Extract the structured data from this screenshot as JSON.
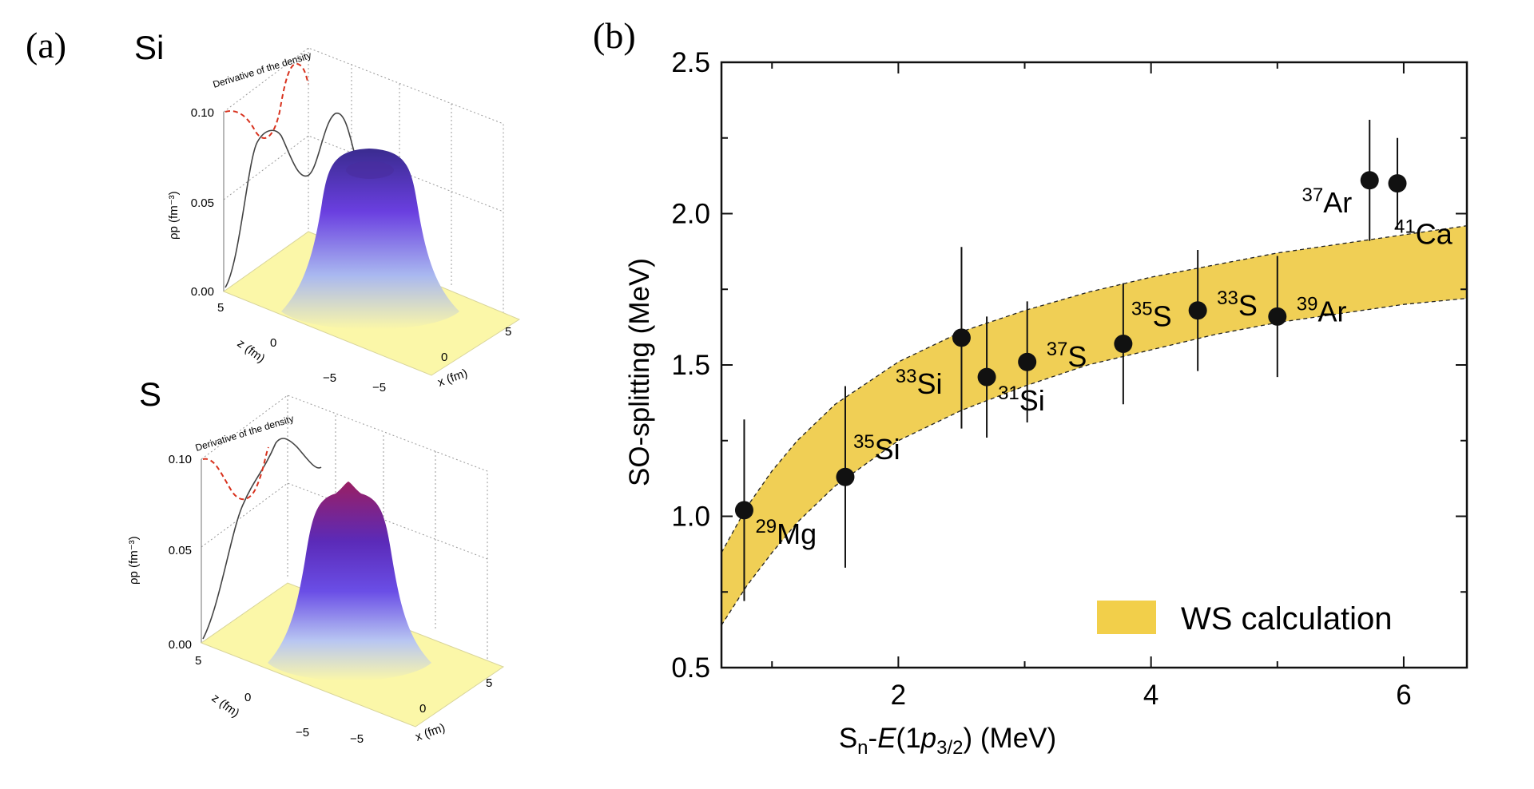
{
  "panel_a": {
    "label": "(a)",
    "plots": [
      {
        "element": "Si",
        "derivative_label": "Derivative of the density",
        "z_axis_label": "ρp (fm⁻³)",
        "z_ticks": [
          "0.10",
          "0.05",
          "0.00"
        ],
        "y_axis_label": "z (fm)",
        "y_ticks": [
          "5",
          "0",
          "−5"
        ],
        "x_axis_label": "x (fm)",
        "x_ticks": [
          "−5",
          "0",
          "5"
        ],
        "surface_top_color": "#3a2b8f",
        "surface_base_color": "#fbf7a8"
      },
      {
        "element": "S",
        "derivative_label": "Derivative of the density",
        "z_axis_label": "ρp (fm⁻³)",
        "z_ticks": [
          "0.10",
          "0.05",
          "0.00"
        ],
        "y_axis_label": "z (fm)",
        "y_ticks": [
          "5",
          "0",
          "−5"
        ],
        "x_axis_label": "x (fm)",
        "x_ticks": [
          "−5",
          "0",
          "5"
        ],
        "surface_top_color": "#9a1f63",
        "surface_base_color": "#fbf7a8"
      }
    ]
  },
  "panel_b": {
    "label": "(b)"
  },
  "chart_data": {
    "type": "scatter",
    "xlabel_parts": [
      "S",
      "n",
      "-",
      "E",
      "(1",
      "p",
      "3/2",
      ") (MeV)"
    ],
    "ylabel": "SO-splitting (MeV)",
    "xlim": [
      0.6,
      6.5
    ],
    "ylim": [
      0.5,
      2.5
    ],
    "x_ticks": [
      2,
      4,
      6
    ],
    "x_tick_labels": [
      "2",
      "4",
      "6"
    ],
    "y_ticks": [
      0.5,
      1.0,
      1.5,
      2.0,
      2.5
    ],
    "y_tick_labels": [
      "0.5",
      "1.0",
      "1.5",
      "2.0",
      "2.5"
    ],
    "grid": false,
    "legend": {
      "label": "WS calculation",
      "placement": "bottom-right",
      "color": "#f2cf4a"
    },
    "band": {
      "name": "WS calculation",
      "color": "#f0cf55",
      "x": [
        0.6,
        0.8,
        1.0,
        1.2,
        1.5,
        2.0,
        2.5,
        3.0,
        3.5,
        4.0,
        4.5,
        5.0,
        5.5,
        6.0,
        6.5
      ],
      "upper": [
        0.88,
        1.03,
        1.15,
        1.25,
        1.37,
        1.51,
        1.61,
        1.68,
        1.74,
        1.79,
        1.83,
        1.87,
        1.9,
        1.93,
        1.96
      ],
      "lower": [
        0.64,
        0.77,
        0.88,
        0.98,
        1.1,
        1.25,
        1.35,
        1.43,
        1.5,
        1.55,
        1.6,
        1.64,
        1.67,
        1.7,
        1.72
      ]
    },
    "points": [
      {
        "x": 0.78,
        "y": 1.02,
        "err": 0.3,
        "mass": "29",
        "symbol": "Mg",
        "label_side": "right-below"
      },
      {
        "x": 1.58,
        "y": 1.13,
        "err": 0.3,
        "mass": "35",
        "symbol": "Si",
        "label_side": "right-above"
      },
      {
        "x": 2.5,
        "y": 1.59,
        "err": 0.3,
        "mass": "33",
        "symbol": "Si",
        "label_side": "left-below"
      },
      {
        "x": 2.7,
        "y": 1.46,
        "err": 0.2,
        "mass": "31",
        "symbol": "Si",
        "label_side": "right-below"
      },
      {
        "x": 3.02,
        "y": 1.51,
        "err": 0.2,
        "mass": "37",
        "symbol": "S",
        "label_side": "right"
      },
      {
        "x": 3.78,
        "y": 1.57,
        "err": 0.2,
        "mass": "35",
        "symbol": "S",
        "label_side": "right-above"
      },
      {
        "x": 4.37,
        "y": 1.68,
        "err": 0.2,
        "mass": "33",
        "symbol": "S",
        "label_side": "right"
      },
      {
        "x": 5.0,
        "y": 1.66,
        "err": 0.2,
        "mass": "39",
        "symbol": "Ar",
        "label_side": "right"
      },
      {
        "x": 5.73,
        "y": 2.11,
        "err": 0.2,
        "mass": "37",
        "symbol": "Ar",
        "label_side": "left"
      },
      {
        "x": 5.95,
        "y": 2.1,
        "err": 0.15,
        "mass": "41",
        "symbol": "Ca",
        "label_side": "below"
      }
    ]
  }
}
